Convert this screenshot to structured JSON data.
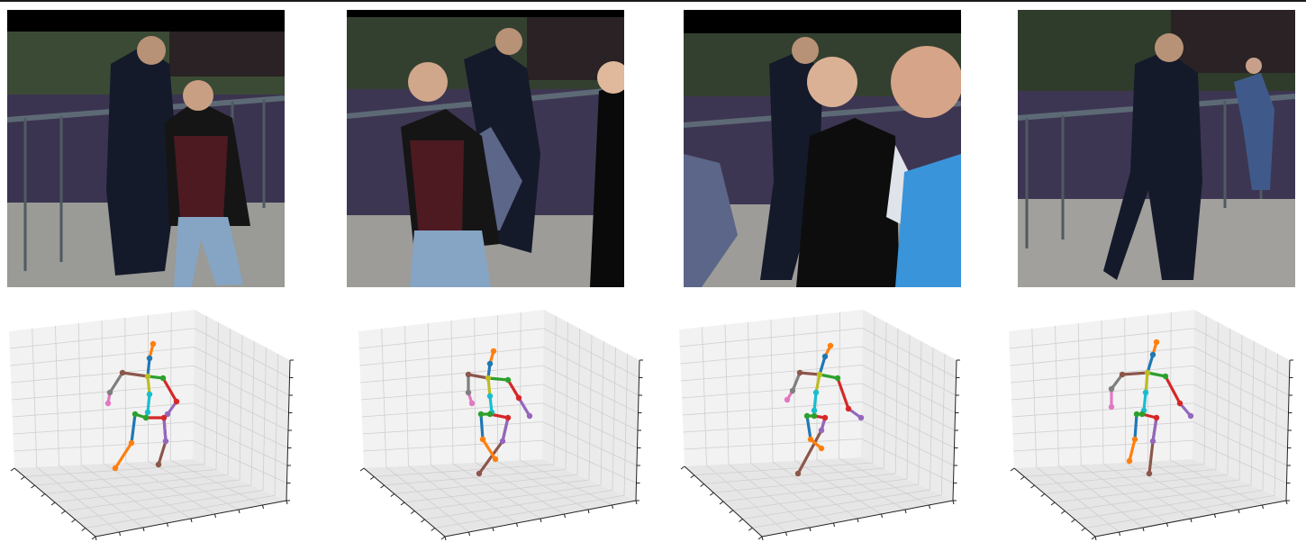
{
  "figure": {
    "panel_count": 4,
    "photos": [
      {
        "scene": "pedestrian-bridge-photo-1",
        "letterbox": "top"
      },
      {
        "scene": "pedestrian-bridge-photo-2",
        "letterbox": "top"
      },
      {
        "scene": "pedestrian-bridge-photo-3",
        "letterbox": "top"
      },
      {
        "scene": "pedestrian-bridge-photo-4",
        "letterbox": "none"
      }
    ],
    "skeleton_colors": {
      "right_leg": "#ff7f0e",
      "left_leg": "#8c564b",
      "hips": "#d62728",
      "left_hip_link": "#9467bd",
      "spine": "#17becf",
      "thorax": "#bcbd22",
      "left_arm": "#d62728",
      "right_arm": "#7f7f7f",
      "right_hand": "#e377c2",
      "left_hand": "#9467bd",
      "neck": "#1f77b4",
      "head": "#ff7f0e",
      "green": "#2ca02c",
      "shoulder_link": "#8c564b"
    },
    "axes_grid": true
  }
}
